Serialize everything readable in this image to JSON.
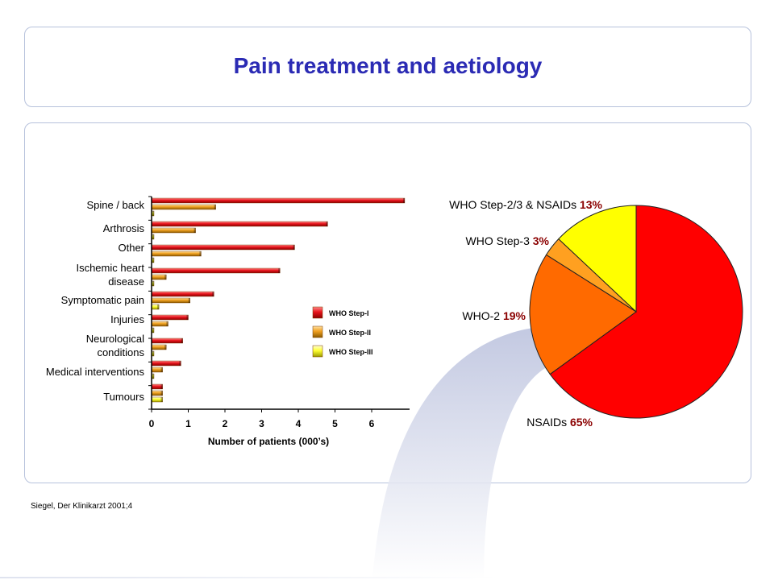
{
  "title": "Pain treatment and aetiology",
  "citation": "Siegel, Der Klinikarzt 2001;4",
  "colors": {
    "title": "#2b2bb4",
    "step1": "#e8141c",
    "step2": "#f0a020",
    "step3": "#ffff33",
    "pie_nsaids": "#ff0000",
    "pie_who2": "#ff6a00",
    "pie_step3": "#ffa020",
    "pie_step23": "#ffff00",
    "percent_text": "#8b0000"
  },
  "chart_data": [
    {
      "type": "bar",
      "orientation": "horizontal",
      "categories": [
        "Spine / back",
        "Arthrosis",
        "Other",
        "Ischemic heart disease",
        "Symptomatic pain",
        "Injuries",
        "Neurological conditions",
        "Medical interventions",
        "Tumours"
      ],
      "series": [
        {
          "name": "WHO Step-I",
          "values": [
            6.9,
            4.8,
            3.9,
            3.5,
            1.7,
            1.0,
            0.85,
            0.8,
            0.3
          ]
        },
        {
          "name": "WHO Step-II",
          "values": [
            1.75,
            1.2,
            1.35,
            0.4,
            1.05,
            0.45,
            0.4,
            0.3,
            0.3
          ]
        },
        {
          "name": "WHO Step-III",
          "values": [
            0.05,
            0.05,
            0.05,
            0.05,
            0.2,
            0.05,
            0.05,
            0.05,
            0.3
          ]
        }
      ],
      "xlabel": "Number of patients (000’s)",
      "xticks": [
        0,
        1,
        2,
        3,
        4,
        5,
        6
      ],
      "xlim": [
        0,
        7
      ],
      "legend": [
        "WHO Step-I",
        "WHO Step-II",
        "WHO Step-III"
      ],
      "legend_position": "right"
    },
    {
      "type": "pie",
      "slices": [
        {
          "label": "NSAIDs",
          "pct_label": "65%",
          "value": 65
        },
        {
          "label": "WHO-2",
          "pct_label": "19%",
          "value": 19
        },
        {
          "label": "WHO Step-3",
          "pct_label": "3%",
          "value": 3
        },
        {
          "label": "WHO Step-2/3 & NSAIDs",
          "pct_label": "13%",
          "value": 13
        }
      ]
    }
  ]
}
